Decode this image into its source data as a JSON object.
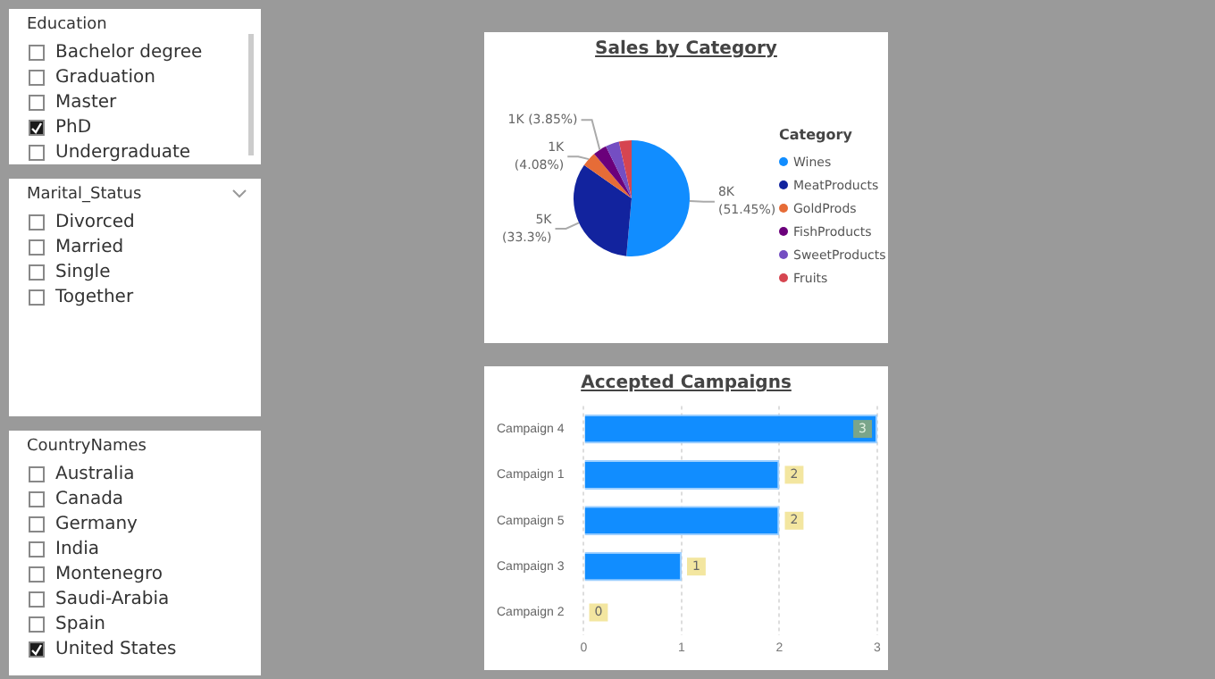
{
  "chart_data": [
    {
      "type": "other",
      "title": "Education",
      "categories": [
        "Bachelor degree",
        "Graduation",
        "Master",
        "PhD",
        "Undergraduate"
      ],
      "colors": [
        "#ffffff",
        "#ffffff",
        "#ffffff",
        "#1a1a1a",
        "#ffffff"
      ]
    },
    {
      "type": "other",
      "title": "Marital_Status",
      "categories": [
        "Divorced",
        "Married",
        "Single",
        "Together"
      ],
      "colors": [
        "#ffffff",
        "#ffffff",
        "#ffffff",
        "#ffffff"
      ]
    },
    {
      "type": "other",
      "title": "CountryNames",
      "categories": [
        "Australia",
        "Canada",
        "Germany",
        "India",
        "Montenegro",
        "Saudi-Arabia",
        "Spain",
        "United States"
      ],
      "colors": [
        "#ffffff",
        "#ffffff",
        "#ffffff",
        "#ffffff",
        "#ffffff",
        "#ffffff",
        "#ffffff",
        "#1a1a1a"
      ]
    },
    {
      "type": "pie",
      "title": "Sales by Category",
      "legend_title": "Category",
      "legend": "right",
      "categories": [
        "Wines",
        "MeatProducts",
        "GoldProds",
        "FishProducts",
        "SweetProducts",
        "Fruits"
      ],
      "values": [
        51.45,
        33.3,
        4.08,
        3.85,
        3.8,
        3.52
      ],
      "colors": [
        "#118dff",
        "#12239e",
        "#e66c37",
        "#6b007b",
        "#744ec2",
        "#d64550"
      ],
      "value_labels": [
        "8K (51.45%)",
        "5K (33.3%)",
        "1K (4.08%)",
        "1K (3.85%)",
        null,
        null
      ]
    },
    {
      "type": "bar",
      "title": "Accepted Campaigns",
      "orientation": "horizontal",
      "categories": [
        "Campaign 4",
        "Campaign 1",
        "Campaign 5",
        "Campaign 3",
        "Campaign 2"
      ],
      "values": [
        3,
        2,
        2,
        1,
        0
      ],
      "color": "#118dff",
      "xlim": [
        0,
        3
      ],
      "xticks": [
        0,
        1,
        2,
        3
      ],
      "grid": "x",
      "data_labels": true
    }
  ]
}
